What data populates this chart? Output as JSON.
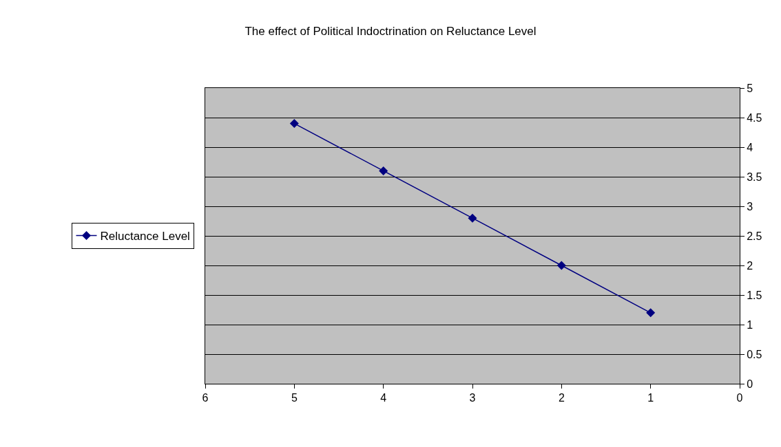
{
  "chart_data": {
    "type": "line",
    "title": "The effect of Political Indoctrination on Reluctance Level",
    "x": [
      5,
      4,
      3,
      2,
      1
    ],
    "series": [
      {
        "name": "Reluctance Level",
        "color": "#000080",
        "values": [
          4.4,
          3.6,
          2.8,
          2.0,
          1.2
        ]
      }
    ],
    "xlim": [
      6,
      0
    ],
    "xticks": [
      6,
      5,
      4,
      3,
      2,
      1,
      0
    ],
    "ylim": [
      0,
      5
    ],
    "yticks": [
      0,
      0.5,
      1,
      1.5,
      2,
      2.5,
      3,
      3.5,
      4,
      4.5,
      5
    ],
    "grid": "y",
    "legend": "left",
    "marker": "diamond",
    "line_style": "solid"
  }
}
